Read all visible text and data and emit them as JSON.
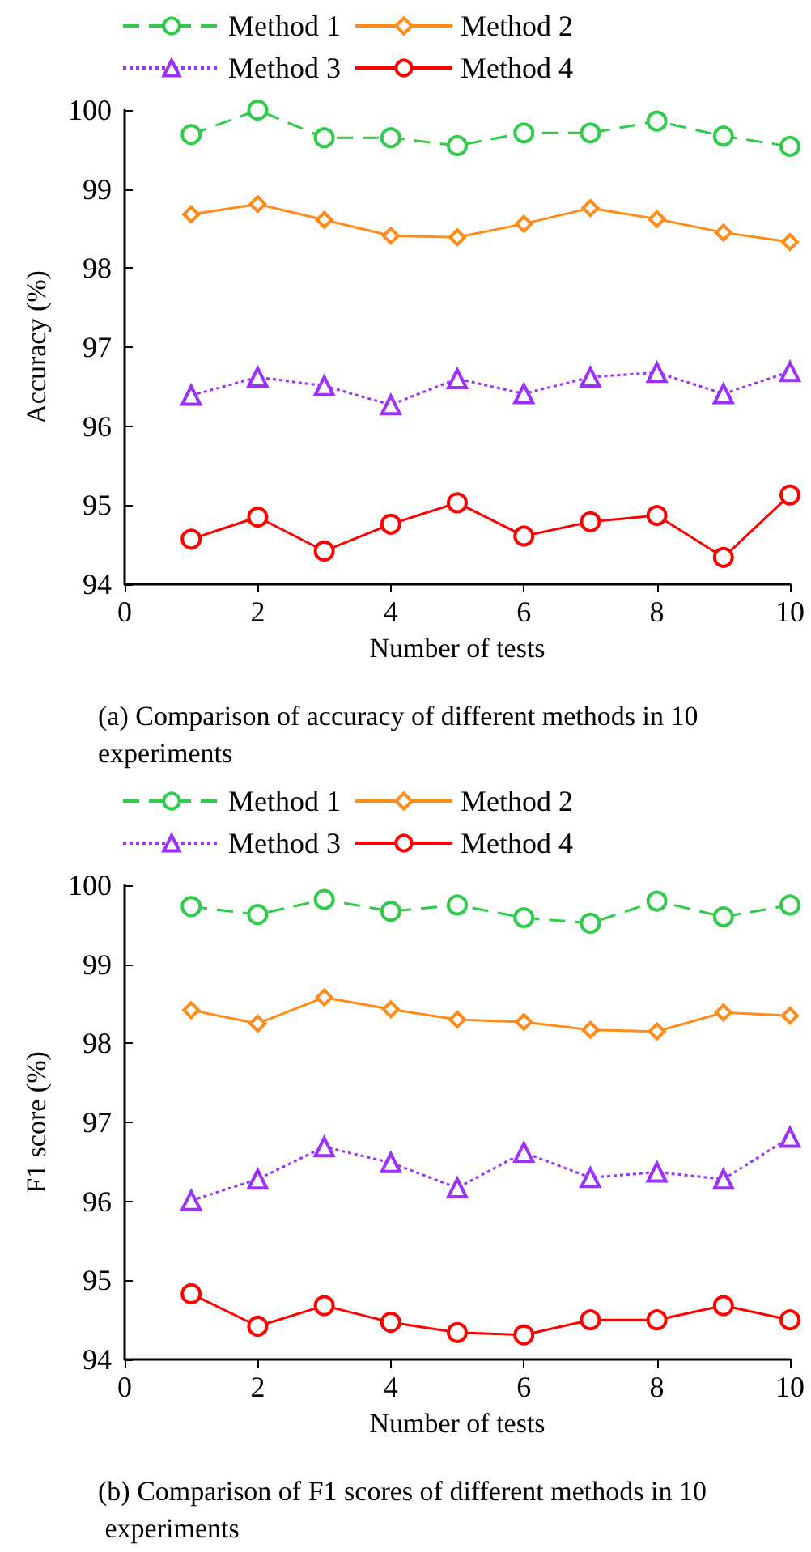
{
  "chart_data": [
    {
      "type": "line",
      "xlabel": "Number of tests",
      "ylabel": "Accuracy (%)",
      "annotations": [
        "(a) Comparison of accuracy of different methods in 10 experiments"
      ],
      "x": [
        1,
        2,
        3,
        4,
        5,
        6,
        7,
        8,
        9,
        10
      ],
      "xlim": [
        0,
        10
      ],
      "xticks": [
        0,
        2,
        4,
        6,
        8,
        10
      ],
      "ylim": [
        94,
        100
      ],
      "yticks": [
        94,
        95,
        96,
        97,
        98,
        99,
        100
      ],
      "grid": false,
      "legend": "top",
      "series": [
        {
          "name": "Method 1",
          "color": "#2ecc4a",
          "marker": "circle",
          "line_style": "dashed",
          "values": [
            99.69,
            100.0,
            99.65,
            99.65,
            99.55,
            99.71,
            99.71,
            99.86,
            99.67,
            99.54
          ]
        },
        {
          "name": "Method 2",
          "color": "#ff8c1a",
          "marker": "diamond",
          "line_style": "solid",
          "values": [
            98.68,
            98.81,
            98.61,
            98.41,
            98.39,
            98.56,
            98.76,
            98.62,
            98.45,
            98.33
          ]
        },
        {
          "name": "Method 3",
          "color": "#9b30ff",
          "marker": "triangle",
          "line_style": "dotted",
          "values": [
            96.39,
            96.62,
            96.51,
            96.27,
            96.6,
            96.41,
            96.62,
            96.68,
            96.41,
            96.69
          ]
        },
        {
          "name": "Method 4",
          "color": "#ff0000",
          "marker": "circle",
          "line_style": "solid",
          "values": [
            94.57,
            94.85,
            94.42,
            94.76,
            95.03,
            94.61,
            94.79,
            94.87,
            94.34,
            95.13
          ]
        }
      ]
    },
    {
      "type": "line",
      "xlabel": "Number of tests",
      "ylabel": "F1 score (%)",
      "annotations": [
        "(b) Comparison of F1 scores of different methods in 10 experiments"
      ],
      "x": [
        1,
        2,
        3,
        4,
        5,
        6,
        7,
        8,
        9,
        10
      ],
      "xlim": [
        0,
        10
      ],
      "xticks": [
        0,
        2,
        4,
        6,
        8,
        10
      ],
      "ylim": [
        94,
        100
      ],
      "yticks": [
        94,
        95,
        96,
        97,
        98,
        99,
        100
      ],
      "grid": false,
      "legend": "top",
      "series": [
        {
          "name": "Method 1",
          "color": "#2ecc4a",
          "marker": "circle",
          "line_style": "dashed",
          "values": [
            99.73,
            99.63,
            99.82,
            99.67,
            99.75,
            99.59,
            99.52,
            99.8,
            99.6,
            99.75
          ]
        },
        {
          "name": "Method 2",
          "color": "#ff8c1a",
          "marker": "diamond",
          "line_style": "solid",
          "values": [
            98.42,
            98.25,
            98.58,
            98.43,
            98.3,
            98.27,
            98.17,
            98.15,
            98.39,
            98.35
          ]
        },
        {
          "name": "Method 3",
          "color": "#9b30ff",
          "marker": "triangle",
          "line_style": "dotted",
          "values": [
            96.01,
            96.28,
            96.69,
            96.49,
            96.17,
            96.62,
            96.3,
            96.37,
            96.28,
            96.81
          ]
        },
        {
          "name": "Method 4",
          "color": "#ff0000",
          "marker": "circle",
          "line_style": "solid",
          "values": [
            94.83,
            94.42,
            94.68,
            94.47,
            94.34,
            94.31,
            94.5,
            94.5,
            94.68,
            94.5
          ]
        }
      ]
    }
  ]
}
